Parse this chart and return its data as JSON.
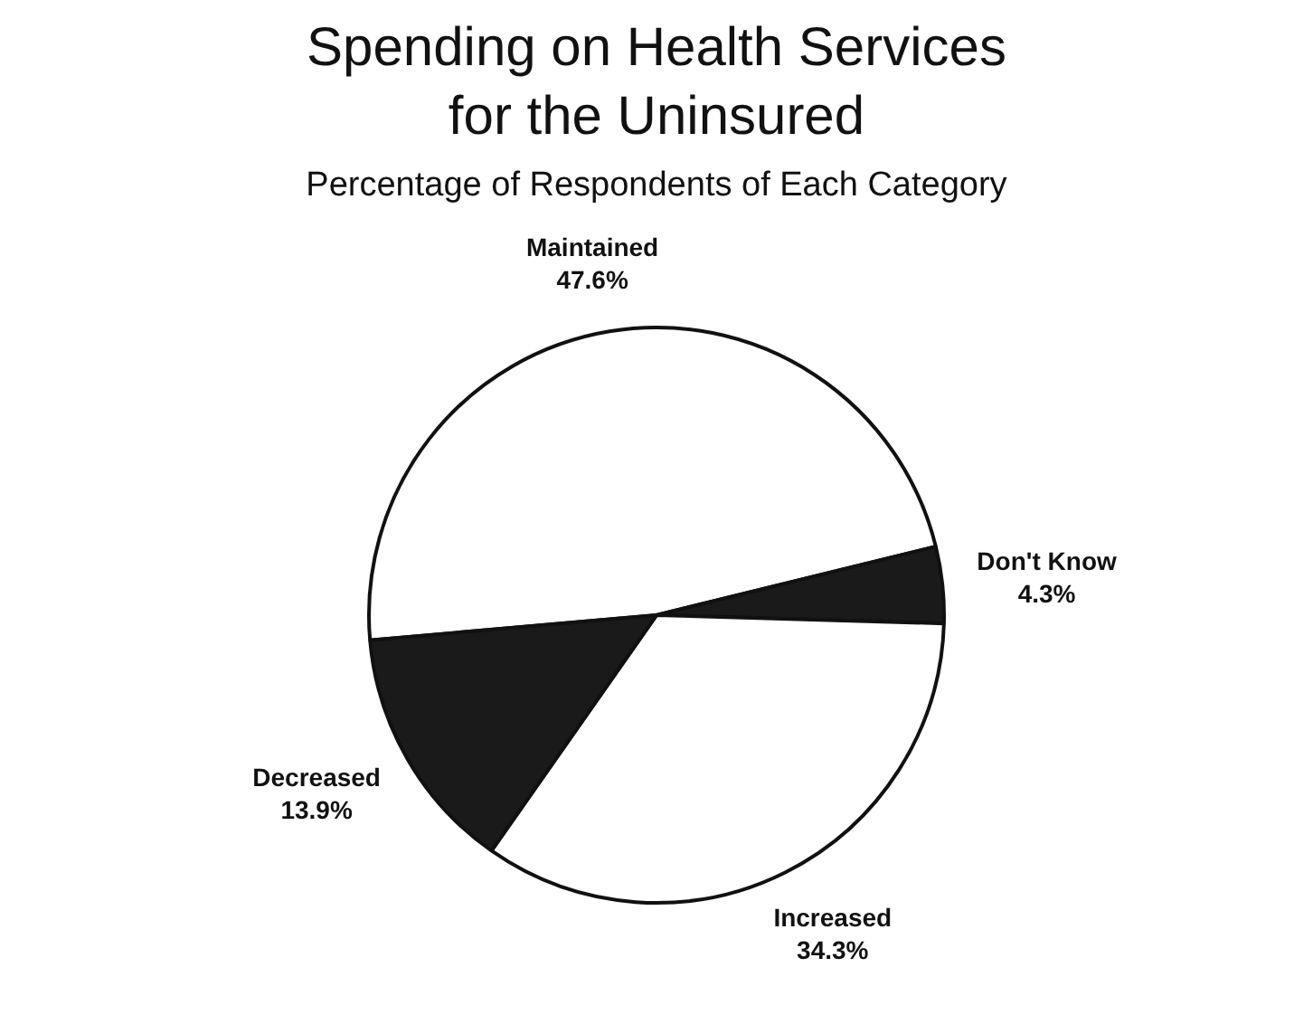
{
  "chart_data": {
    "type": "pie",
    "title": "Spending on Health Services\nfor the Uninsured",
    "subtitle": "Percentage of Respondents of Each Category",
    "categories": [
      "Maintained",
      "Don't Know",
      "Increased",
      "Decreased"
    ],
    "values": [
      47.6,
      4.3,
      34.3,
      13.9
    ],
    "value_labels": [
      "47.6%",
      "4.3%",
      "34.3%",
      "13.9%"
    ],
    "colors": [
      "#ffffff",
      "#1a1a1a",
      "#ffffff",
      "#1a1a1a"
    ],
    "legend": false
  }
}
